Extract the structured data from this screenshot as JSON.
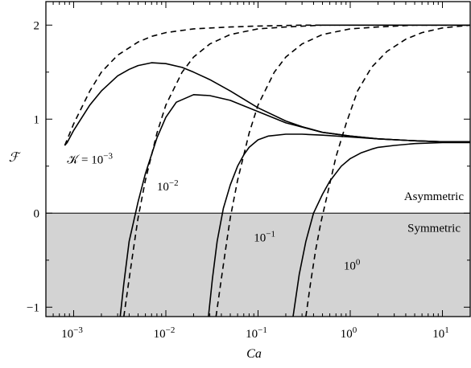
{
  "chart_data": {
    "type": "line",
    "xlabel": "Ca",
    "ylabel": "ℱ",
    "xscale": "log",
    "xlim": [
      0.0005,
      20
    ],
    "ylim": [
      -1.1,
      2.25
    ],
    "grid": false,
    "x_ticks": [
      {
        "value": 0.001,
        "base": "10",
        "exp": "−3"
      },
      {
        "value": 0.01,
        "base": "10",
        "exp": "−2"
      },
      {
        "value": 0.1,
        "base": "10",
        "exp": "−1"
      },
      {
        "value": 1,
        "base": "10",
        "exp": "0"
      },
      {
        "value": 10,
        "base": "10",
        "exp": "1"
      }
    ],
    "y_ticks": [
      {
        "value": -1,
        "label": "−1"
      },
      {
        "value": 0,
        "label": "0"
      },
      {
        "value": 1,
        "label": "1"
      },
      {
        "value": 2,
        "label": "2"
      }
    ],
    "region_labels": {
      "upper": "Asymmetric",
      "lower": "Symmetric"
    },
    "shaded_region": {
      "y_from": -1.1,
      "y_to": 0,
      "color": "#d3d3d3"
    },
    "curve_labels": [
      {
        "series": "K=1e-3",
        "prefix": "𝒦 = 10",
        "exp": "−3"
      },
      {
        "series": "K=1e-2",
        "prefix": "10",
        "exp": "−2"
      },
      {
        "series": "K=1e-1",
        "prefix": "10",
        "exp": "−1"
      },
      {
        "series": "K=1e0",
        "prefix": "10",
        "exp": "0"
      }
    ],
    "series": [
      {
        "id": "K=1e-3",
        "style": "solid",
        "x": [
          0.0008,
          0.00085,
          0.001,
          0.0015,
          0.002,
          0.003,
          0.004,
          0.005,
          0.007,
          0.01,
          0.015,
          0.02,
          0.03,
          0.05,
          0.1,
          0.2,
          0.3,
          0.5,
          1,
          2,
          5,
          10,
          20
        ],
        "y": [
          0.72,
          0.75,
          0.88,
          1.15,
          1.3,
          1.46,
          1.53,
          1.57,
          1.6,
          1.59,
          1.55,
          1.5,
          1.42,
          1.3,
          1.12,
          0.98,
          0.92,
          0.86,
          0.82,
          0.79,
          0.77,
          0.76,
          0.76
        ]
      },
      {
        "id": "K=1e-3",
        "style": "dashed",
        "x": [
          0.0008,
          0.001,
          0.0015,
          0.002,
          0.003,
          0.005,
          0.007,
          0.01,
          0.02,
          0.05,
          0.1,
          0.3,
          1,
          3,
          10,
          20
        ],
        "y": [
          0.72,
          0.95,
          1.3,
          1.5,
          1.68,
          1.82,
          1.88,
          1.92,
          1.96,
          1.98,
          1.99,
          2.0,
          2.0,
          2.0,
          2.0,
          2.0
        ]
      },
      {
        "id": "K=1e-2",
        "style": "solid",
        "x": [
          0.0032,
          0.0035,
          0.004,
          0.005,
          0.006,
          0.008,
          0.01,
          0.013,
          0.02,
          0.03,
          0.05,
          0.1,
          0.2,
          0.5,
          1,
          2,
          5,
          10,
          20
        ],
        "y": [
          -1.1,
          -0.75,
          -0.3,
          0.12,
          0.42,
          0.8,
          1.02,
          1.18,
          1.26,
          1.25,
          1.2,
          1.08,
          0.96,
          0.86,
          0.82,
          0.79,
          0.77,
          0.76,
          0.76
        ]
      },
      {
        "id": "K=1e-2",
        "style": "dashed",
        "x": [
          0.0035,
          0.004,
          0.0045,
          0.005,
          0.006,
          0.008,
          0.01,
          0.015,
          0.02,
          0.03,
          0.05,
          0.1,
          0.2,
          0.5,
          1,
          5,
          20
        ],
        "y": [
          -1.1,
          -0.7,
          -0.35,
          -0.05,
          0.35,
          0.85,
          1.15,
          1.5,
          1.66,
          1.8,
          1.9,
          1.96,
          1.98,
          2.0,
          2.0,
          2.0,
          2.0
        ]
      },
      {
        "id": "K=1e-1",
        "style": "solid",
        "x": [
          0.029,
          0.032,
          0.036,
          0.042,
          0.05,
          0.06,
          0.07,
          0.08,
          0.1,
          0.13,
          0.2,
          0.3,
          0.5,
          1,
          2,
          5,
          10,
          20
        ],
        "y": [
          -1.1,
          -0.7,
          -0.3,
          0.05,
          0.3,
          0.5,
          0.62,
          0.7,
          0.78,
          0.82,
          0.84,
          0.84,
          0.83,
          0.81,
          0.79,
          0.77,
          0.76,
          0.76
        ]
      },
      {
        "id": "K=1e-1",
        "style": "dashed",
        "x": [
          0.035,
          0.04,
          0.045,
          0.05,
          0.06,
          0.08,
          0.1,
          0.15,
          0.2,
          0.3,
          0.5,
          1,
          2,
          5,
          20
        ],
        "y": [
          -1.1,
          -0.7,
          -0.35,
          -0.05,
          0.35,
          0.85,
          1.15,
          1.5,
          1.66,
          1.8,
          1.9,
          1.96,
          1.98,
          2.0,
          2.0
        ]
      },
      {
        "id": "K=1e0",
        "style": "solid",
        "x": [
          0.24,
          0.28,
          0.33,
          0.4,
          0.5,
          0.6,
          0.8,
          1.0,
          1.3,
          1.7,
          2,
          3,
          5,
          10,
          20
        ],
        "y": [
          -1.1,
          -0.65,
          -0.3,
          0.0,
          0.2,
          0.34,
          0.5,
          0.58,
          0.64,
          0.68,
          0.7,
          0.72,
          0.74,
          0.75,
          0.75
        ]
      },
      {
        "id": "K=1e0",
        "style": "dashed",
        "x": [
          0.33,
          0.37,
          0.42,
          0.48,
          0.55,
          0.7,
          0.9,
          1.2,
          1.7,
          2.5,
          4,
          6,
          10,
          20
        ],
        "y": [
          -1.1,
          -0.75,
          -0.4,
          -0.1,
          0.15,
          0.6,
          0.95,
          1.3,
          1.55,
          1.72,
          1.85,
          1.92,
          1.97,
          2.0
        ]
      }
    ]
  }
}
